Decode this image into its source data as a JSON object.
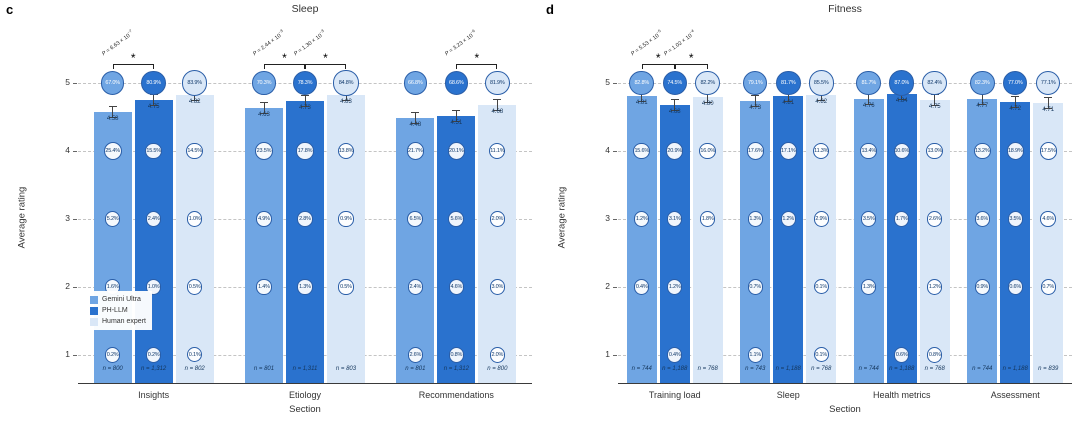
{
  "chart_data": [
    {
      "type": "bar",
      "panel_letter": "c",
      "title": "Sleep",
      "xlabel": "Section",
      "ylabel": "Average rating",
      "yticks": [
        1,
        2,
        3,
        4,
        5
      ],
      "ylim": [
        0.55,
        5.45
      ],
      "grid": "dashed horizontal",
      "legend_position": "lower left inside plot",
      "categories": [
        "Insights",
        "Etiology",
        "Recommendations"
      ],
      "rating_levels": [
        5,
        4,
        3,
        2,
        1
      ],
      "series": [
        {
          "name": "Gemini Ultra",
          "color": "#6FA5E3",
          "light": false,
          "means": [
            4.58,
            4.63,
            4.48
          ],
          "n": [
            "n = 800",
            "n = 801",
            "n = 801"
          ],
          "pct_by_rating": [
            [
              67.0,
              25.4,
              5.2,
              1.6,
              0.2
            ],
            [
              70.3,
              23.5,
              4.9,
              1.4,
              null
            ],
            [
              66.8,
              21.7,
              6.5,
              2.4,
              2.6
            ]
          ]
        },
        {
          "name": "PH-LLM",
          "color": "#2A72CE",
          "light": false,
          "means": [
            4.75,
            4.73,
            4.51
          ],
          "n": [
            "n = 1,312",
            "n = 1,311",
            "n = 1,312"
          ],
          "pct_by_rating": [
            [
              80.9,
              15.5,
              2.4,
              1.0,
              0.2
            ],
            [
              78.3,
              17.8,
              2.8,
              1.3,
              null
            ],
            [
              68.6,
              20.1,
              5.6,
              4.6,
              0.8
            ]
          ]
        },
        {
          "name": "Human expert",
          "color": "#D9E7F7",
          "light": true,
          "means": [
            4.82,
            4.83,
            4.68
          ],
          "n": [
            "n = 802",
            "n = 803",
            "n = 800"
          ],
          "pct_by_rating": [
            [
              83.9,
              14.5,
              1.0,
              0.5,
              0.1
            ],
            [
              84.8,
              13.8,
              0.9,
              0.5,
              null
            ],
            [
              81.9,
              11.1,
              2.0,
              3.0,
              2.0
            ]
          ]
        }
      ],
      "significance": [
        {
          "group": 0,
          "from": 0,
          "to": 1,
          "star": "*",
          "p_base": "P = 6.63 × 10",
          "p_exp": "−7"
        },
        {
          "group": 1,
          "from": 0,
          "to": 1,
          "star": "*",
          "p_base": "P = 2.44 × 10",
          "p_exp": "−3"
        },
        {
          "group": 1,
          "from": 1,
          "to": 2,
          "star": "*",
          "p_base": "P = 1.30 × 10",
          "p_exp": "−3"
        },
        {
          "group": 2,
          "from": 1,
          "to": 2,
          "star": "*",
          "p_base": "P = 3.23 × 10",
          "p_exp": "−6"
        }
      ]
    },
    {
      "type": "bar",
      "panel_letter": "d",
      "title": "Fitness",
      "xlabel": "Section",
      "ylabel": "Average rating",
      "yticks": [
        1,
        2,
        3,
        4,
        5
      ],
      "ylim": [
        0.55,
        5.45
      ],
      "grid": "dashed horizontal",
      "legend_position": "none",
      "categories": [
        "Training load",
        "Sleep",
        "Health metrics",
        "Assessment"
      ],
      "rating_levels": [
        5,
        4,
        3,
        2,
        1
      ],
      "series": [
        {
          "name": "Gemini Ultra",
          "color": "#6FA5E3",
          "light": false,
          "means": [
            4.81,
            4.73,
            4.76,
            4.77
          ],
          "n": [
            "n = 744",
            "n = 743",
            "n = 744",
            "n = 744"
          ],
          "pct_by_rating": [
            [
              82.8,
              15.6,
              1.2,
              0.4,
              null
            ],
            [
              79.1,
              17.6,
              1.3,
              0.7,
              1.1
            ],
            [
              81.7,
              13.4,
              3.5,
              1.3,
              null
            ],
            [
              82.3,
              13.2,
              3.6,
              0.9,
              null
            ]
          ]
        },
        {
          "name": "PH-LLM",
          "color": "#2A72CE",
          "light": false,
          "means": [
            4.68,
            4.81,
            4.84,
            4.72
          ],
          "n": [
            "n = 1,188",
            "n = 1,188",
            "n = 1,188",
            "n = 1,188"
          ],
          "pct_by_rating": [
            [
              74.5,
              20.9,
              3.1,
              1.2,
              0.4
            ],
            [
              81.7,
              17.1,
              1.2,
              null,
              null
            ],
            [
              87.0,
              10.6,
              1.7,
              null,
              0.6
            ],
            [
              77.0,
              18.9,
              3.5,
              0.6,
              null
            ]
          ]
        },
        {
          "name": "Human expert",
          "color": "#D9E7F7",
          "light": true,
          "means": [
            4.8,
            4.82,
            4.75,
            4.71
          ],
          "n": [
            "n = 768",
            "n = 768",
            "n = 768",
            "n = 839"
          ],
          "pct_by_rating": [
            [
              82.2,
              16.0,
              1.8,
              null,
              null
            ],
            [
              85.5,
              11.3,
              2.9,
              0.1,
              0.1
            ],
            [
              82.4,
              13.0,
              2.6,
              1.2,
              0.8
            ],
            [
              77.1,
              17.5,
              4.6,
              0.7,
              null
            ]
          ]
        }
      ],
      "significance": [
        {
          "group": 0,
          "from": 0,
          "to": 1,
          "star": "*",
          "p_base": "P = 5.53 × 10",
          "p_exp": "−5"
        },
        {
          "group": 0,
          "from": 1,
          "to": 2,
          "star": "*",
          "p_base": "P = 1.02 × 10",
          "p_exp": "−4"
        }
      ]
    }
  ]
}
